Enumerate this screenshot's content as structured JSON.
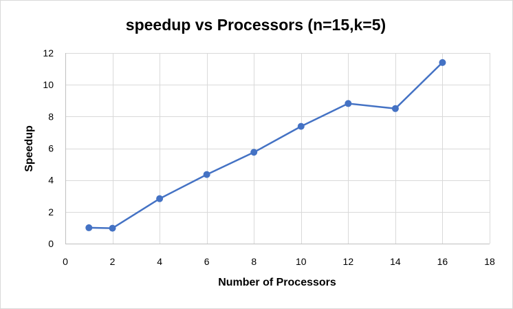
{
  "chart_data": {
    "type": "scatter",
    "title": "speedup vs Processors (n=15,k=5)",
    "xlabel": "Number of Processors",
    "ylabel": "Speedup",
    "xlim": [
      0,
      18
    ],
    "ylim": [
      0,
      12
    ],
    "xticks": [
      0,
      2,
      4,
      6,
      8,
      10,
      12,
      14,
      16,
      18
    ],
    "yticks": [
      0,
      2,
      4,
      6,
      8,
      10,
      12
    ],
    "grid": true,
    "series": [
      {
        "x": [
          1,
          2,
          4,
          6,
          8,
          10,
          12,
          14,
          16
        ],
        "y": [
          1.0,
          0.97,
          2.83,
          4.35,
          5.75,
          7.38,
          8.82,
          8.5,
          11.4
        ],
        "color": "#4472C4"
      }
    ]
  }
}
